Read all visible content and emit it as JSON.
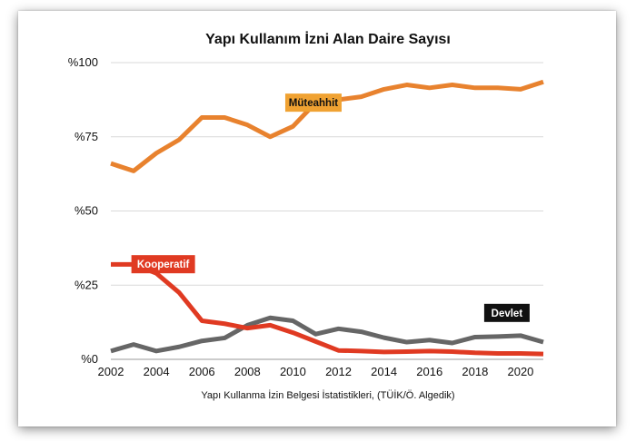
{
  "chart_data": {
    "type": "line",
    "title": "Yapı Kullanım İzni Alan Daire Sayısı",
    "source": "Yapı Kullanma İzin Belgesi İstatistikleri, (TÜİK/Ö. Algedik)",
    "xlabel": "",
    "ylabel": "",
    "x": [
      2002,
      2003,
      2004,
      2005,
      2006,
      2007,
      2008,
      2009,
      2010,
      2011,
      2012,
      2013,
      2014,
      2015,
      2016,
      2017,
      2018,
      2019,
      2020,
      2021
    ],
    "x_ticks": [
      "2002",
      "2004",
      "2006",
      "2008",
      "2010",
      "2012",
      "2014",
      "2016",
      "2018",
      "2020"
    ],
    "x_tick_values": [
      2002,
      2004,
      2006,
      2008,
      2010,
      2012,
      2014,
      2016,
      2018,
      2020
    ],
    "y_ticks": [
      "%0",
      "%25",
      "%50",
      "%75",
      "%100"
    ],
    "y_tick_values": [
      0,
      25,
      50,
      75,
      100
    ],
    "xlim": [
      2002,
      2021
    ],
    "ylim": [
      0,
      100
    ],
    "grid": true,
    "series": [
      {
        "name": "Müteahhit",
        "color": "#E8822E",
        "label_bg": "#F0A232",
        "label_fg": "#111111",
        "values": [
          66,
          63.5,
          69.5,
          74,
          81.5,
          81.5,
          79,
          75,
          78.5,
          86.5,
          87.5,
          88.5,
          91,
          92.5,
          91.5,
          92.5,
          91.5,
          91.5,
          91,
          93.5
        ]
      },
      {
        "name": "Kooperatif",
        "color": "#E03A22",
        "label_bg": "#E03A22",
        "label_fg": "#ffffff",
        "values": [
          32,
          32,
          29,
          22.5,
          13,
          12,
          10.5,
          11.5,
          9,
          6,
          3,
          2.8,
          2.5,
          2.6,
          2.8,
          2.6,
          2.2,
          2,
          2,
          1.8
        ]
      },
      {
        "name": "Devlet",
        "color": "#666666",
        "label_bg": "#111111",
        "label_fg": "#ffffff",
        "values": [
          2.8,
          5,
          2.8,
          4.2,
          6.2,
          7.2,
          11.5,
          14,
          13,
          8.5,
          10.3,
          9.3,
          7.3,
          5.8,
          6.5,
          5.5,
          7.5,
          7.7,
          8,
          5.8
        ]
      }
    ]
  }
}
